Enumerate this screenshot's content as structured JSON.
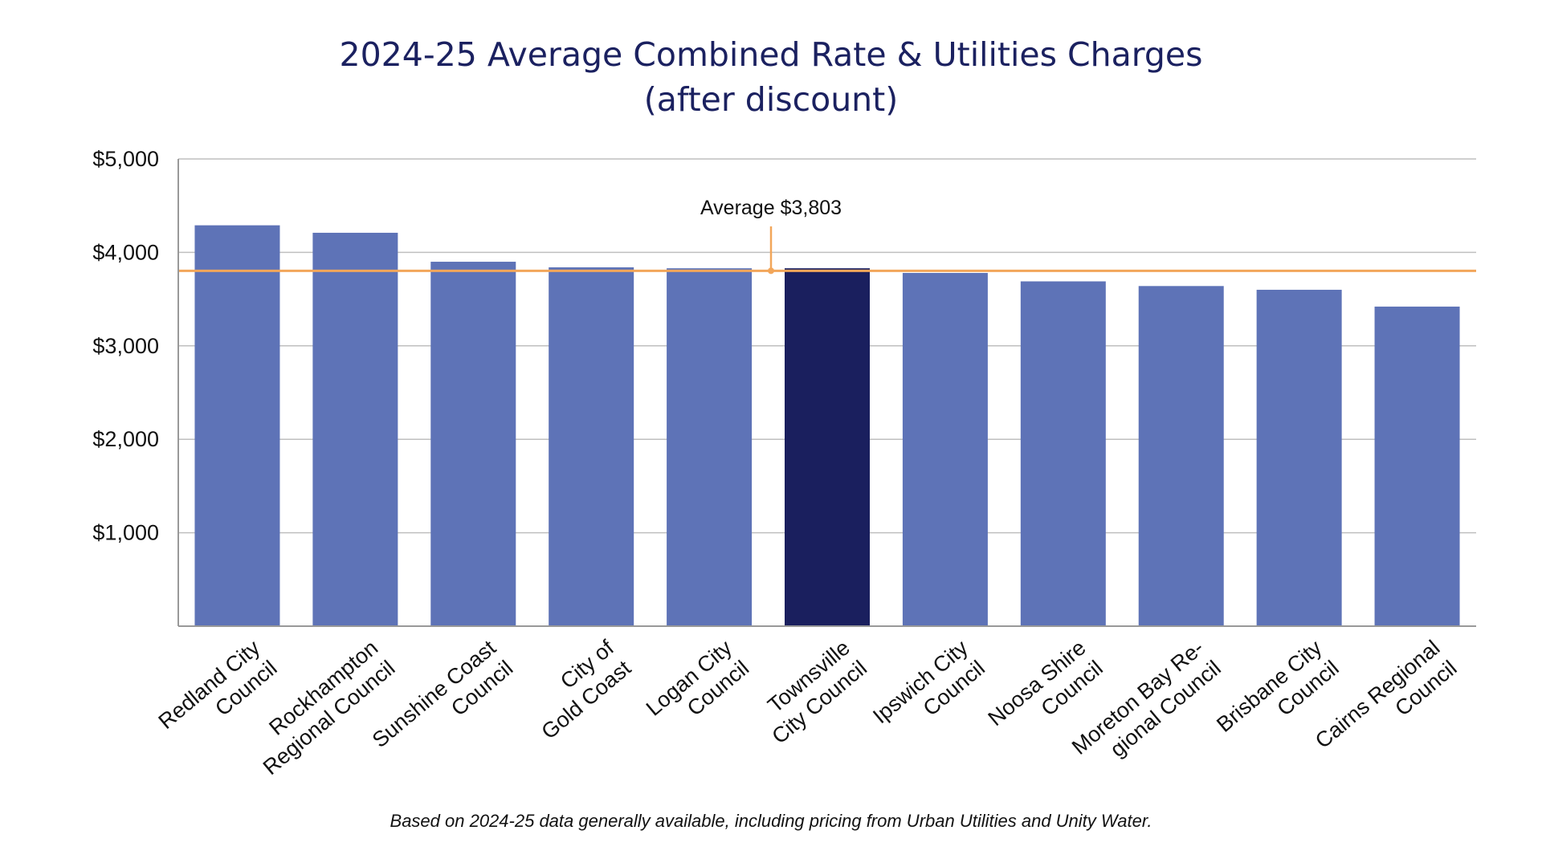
{
  "chart_data": {
    "type": "bar",
    "title": "2024-25 Average Combined Rate & Utilities Charges",
    "subtitle": "(after discount)",
    "categories": [
      [
        "Redland City",
        "Council"
      ],
      [
        "Rockhampton",
        "Regional Council"
      ],
      [
        "Sunshine Coast",
        "Council"
      ],
      [
        "City of",
        "Gold Coast"
      ],
      [
        "Logan City",
        "Council"
      ],
      [
        "Townsville",
        "City Council"
      ],
      [
        "Ipswich City",
        "Council"
      ],
      [
        "Noosa Shire",
        "Council"
      ],
      [
        "Moreton Bay Re-",
        "gional Council"
      ],
      [
        "Brisbane City",
        "Council"
      ],
      [
        "Cairns Regional",
        "Council"
      ]
    ],
    "values": [
      4290,
      4210,
      3900,
      3840,
      3830,
      3830,
      3780,
      3690,
      3640,
      3600,
      3420
    ],
    "highlight_index": 5,
    "y_ticks": [
      1000,
      2000,
      3000,
      4000,
      5000
    ],
    "y_tick_labels": [
      "$1,000",
      "$2,000",
      "$3,000",
      "$4,000",
      "$5,000"
    ],
    "ylim": [
      0,
      5000
    ],
    "grid": true,
    "reference_line": {
      "value": 3803,
      "label": "Average $3,803"
    },
    "colors": {
      "bar": "#5e73b7",
      "bar_highlight": "#1a1f5e",
      "average_line": "#f2a65a",
      "grid": "#bfbfbf",
      "title": "#1b2160"
    },
    "footnote": "Based on 2024-25 data generally available, including pricing from Urban Utilities and Unity Water."
  }
}
